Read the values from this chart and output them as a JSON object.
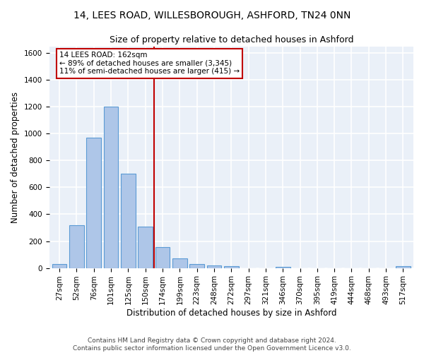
{
  "title1": "14, LEES ROAD, WILLESBOROUGH, ASHFORD, TN24 0NN",
  "title2": "Size of property relative to detached houses in Ashford",
  "xlabel": "Distribution of detached houses by size in Ashford",
  "ylabel": "Number of detached properties",
  "categories": [
    "27sqm",
    "52sqm",
    "76sqm",
    "101sqm",
    "125sqm",
    "150sqm",
    "174sqm",
    "199sqm",
    "223sqm",
    "248sqm",
    "272sqm",
    "297sqm",
    "321sqm",
    "346sqm",
    "370sqm",
    "395sqm",
    "419sqm",
    "444sqm",
    "468sqm",
    "493sqm",
    "517sqm"
  ],
  "values": [
    30,
    320,
    970,
    1200,
    700,
    310,
    155,
    70,
    28,
    18,
    15,
    0,
    0,
    10,
    0,
    0,
    0,
    0,
    0,
    0,
    15
  ],
  "bar_color": "#aec6e8",
  "bar_edge_color": "#5b9bd5",
  "vline_x": 5.5,
  "vline_color": "#c00000",
  "annotation_text": "14 LEES ROAD: 162sqm\n← 89% of detached houses are smaller (3,345)\n11% of semi-detached houses are larger (415) →",
  "annotation_box_color": "white",
  "annotation_box_edge_color": "#c00000",
  "ylim": [
    0,
    1650
  ],
  "yticks": [
    0,
    200,
    400,
    600,
    800,
    1000,
    1200,
    1400,
    1600
  ],
  "bg_color": "#eaf0f8",
  "grid_color": "white",
  "footer": "Contains HM Land Registry data © Crown copyright and database right 2024.\nContains public sector information licensed under the Open Government Licence v3.0.",
  "title_fontsize": 10,
  "subtitle_fontsize": 9,
  "axis_label_fontsize": 8.5,
  "tick_fontsize": 7.5,
  "footer_fontsize": 6.5
}
